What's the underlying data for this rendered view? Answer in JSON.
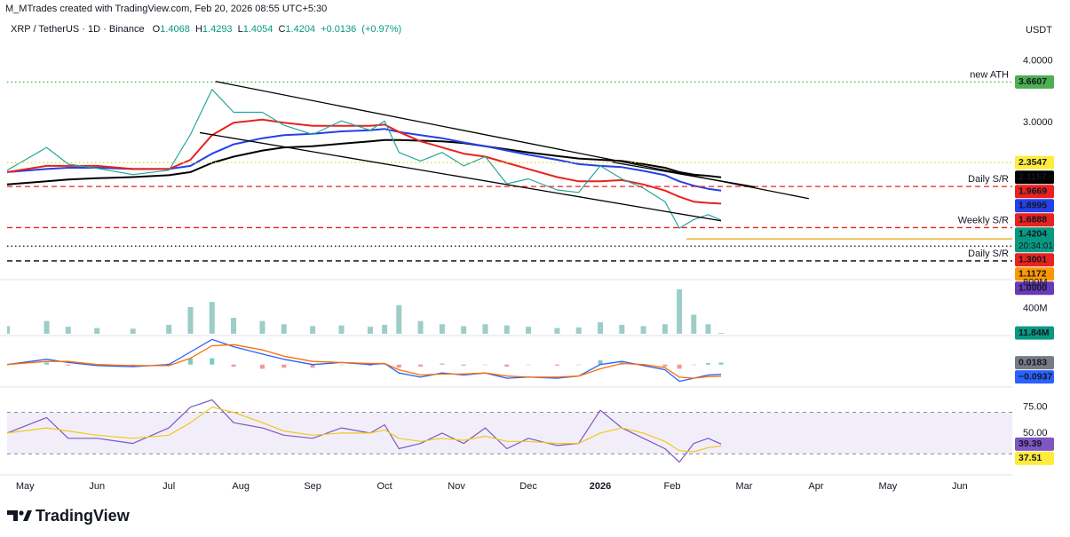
{
  "header": {
    "credit": "M_MTrades created with TradingView.com, Feb 20, 2026 08:55 UTC+5:30",
    "symbol": "XRP / TetherUS · 1D · Binance",
    "ohlc": [
      {
        "key": "O",
        "value": 1.4068
      },
      {
        "key": "H",
        "value": 1.4293
      },
      {
        "key": "L",
        "value": 1.4054
      },
      {
        "key": "C",
        "value": 1.4204
      }
    ],
    "change": "+0.0136",
    "change_pct": "(+0.97%)",
    "currency": "USDT"
  },
  "footer": {
    "brand": "TradingView"
  },
  "chart_data": [
    {
      "type": "line",
      "xlim": [
        -0.25,
        13.73
      ],
      "xticks": [
        {
          "value": 0,
          "label": "May"
        },
        {
          "value": 1,
          "label": "Jun"
        },
        {
          "value": 2,
          "label": "Jul"
        },
        {
          "value": 3,
          "label": "Aug"
        },
        {
          "value": 4,
          "label": "Sep"
        },
        {
          "value": 5,
          "label": "Oct"
        },
        {
          "value": 6,
          "label": "Nov"
        },
        {
          "value": 7,
          "label": "Dec"
        },
        {
          "value": 8,
          "label": "2026"
        },
        {
          "value": 9,
          "label": "Feb"
        },
        {
          "value": 10,
          "label": "Mar"
        },
        {
          "value": 11,
          "label": "Apr"
        },
        {
          "value": 12,
          "label": "May"
        },
        {
          "value": 13,
          "label": "Jun"
        }
      ],
      "ylim": [
        0.5,
        4.3
      ],
      "yticks": [
        {
          "value": 3,
          "label": "3.0000"
        },
        {
          "value": 4,
          "label": "4.0000"
        }
      ],
      "x": [
        -0.25,
        0.3,
        0.6,
        1.0,
        1.5,
        2.0,
        2.3,
        2.6,
        2.9,
        3.3,
        3.6,
        4.0,
        4.4,
        4.8,
        5.0,
        5.2,
        5.5,
        5.8,
        6.1,
        6.4,
        6.7,
        7.0,
        7.4,
        7.7,
        8.0,
        8.3,
        8.6,
        8.9,
        9.1,
        9.3,
        9.5,
        9.68
      ],
      "series": [
        {
          "color": "#000000",
          "width": 2,
          "tag_color": "#000000",
          "values": [
            2.0,
            2.05,
            2.08,
            2.1,
            2.12,
            2.15,
            2.2,
            2.35,
            2.45,
            2.55,
            2.6,
            2.62,
            2.66,
            2.7,
            2.72,
            2.72,
            2.71,
            2.7,
            2.67,
            2.62,
            2.57,
            2.52,
            2.46,
            2.42,
            2.4,
            2.38,
            2.33,
            2.27,
            2.2,
            2.16,
            2.14,
            2.1157
          ]
        },
        {
          "color": "#2440e8",
          "width": 2,
          "tag_color": "#2440e8",
          "values": [
            2.2,
            2.25,
            2.27,
            2.27,
            2.25,
            2.25,
            2.3,
            2.5,
            2.65,
            2.75,
            2.8,
            2.82,
            2.86,
            2.88,
            2.9,
            2.85,
            2.8,
            2.75,
            2.68,
            2.62,
            2.55,
            2.48,
            2.4,
            2.33,
            2.3,
            2.28,
            2.22,
            2.15,
            2.05,
            1.98,
            1.93,
            1.8995
          ]
        },
        {
          "color": "#e8221f",
          "width": 2,
          "tag_color": "#e8221f",
          "values": [
            2.2,
            2.3,
            2.3,
            2.3,
            2.25,
            2.25,
            2.4,
            2.8,
            3.0,
            3.05,
            3.0,
            2.95,
            2.95,
            2.95,
            2.97,
            2.85,
            2.7,
            2.6,
            2.5,
            2.45,
            2.35,
            2.25,
            2.12,
            2.05,
            2.05,
            2.07,
            2.0,
            1.9,
            1.8,
            1.72,
            1.7,
            1.6888
          ]
        },
        {
          "color": "#26a69a",
          "width": 1.2,
          "tag_color": "#089981",
          "countdown": "20:34:01",
          "values": [
            2.23,
            2.6,
            2.33,
            2.26,
            2.16,
            2.23,
            2.81,
            3.54,
            3.17,
            3.17,
            2.96,
            2.81,
            3.03,
            2.88,
            3.03,
            2.52,
            2.38,
            2.52,
            2.3,
            2.45,
            2.01,
            2.09,
            1.91,
            1.87,
            2.3,
            2.09,
            1.94,
            1.72,
            1.29,
            1.43,
            1.51,
            1.4204
          ]
        }
      ],
      "levels": [
        {
          "value": 3.6607,
          "color": "#4caf50",
          "style": "dotted",
          "text": "new ATH",
          "tag_color": "#4caf50"
        },
        {
          "value": 2.3547,
          "color": "#e6d21e",
          "style": "dotted",
          "tag_color": "#ffeb3b",
          "tag_text_color": "#000000"
        },
        {
          "value": 1.9669,
          "color": "#e8221f",
          "style": "dashed",
          "text": "Daily S/R",
          "tag_color": "#e8221f"
        },
        {
          "value": 1.3001,
          "color": "#e8221f",
          "style": "dashed",
          "text": "Weekly S/R",
          "tag_color": "#e8221f"
        },
        {
          "value": 1.1172,
          "color": "#e0a400",
          "style": "solid",
          "x_start": 9.2,
          "tag_color": "#ff9800"
        },
        {
          "value": 1,
          "label": "1.0000",
          "color": "#000000",
          "style": "dotted",
          "tag_color": "#673ab7"
        },
        {
          "value": 0.76,
          "color": "#000000",
          "style": "dashed",
          "text": "Daily S/R"
        }
      ],
      "trendlines": [
        {
          "color": "#000000",
          "x": [
            2.65,
            10.9
          ],
          "y": [
            3.67,
            1.77
          ]
        },
        {
          "color": "#000000",
          "x": [
            2.43,
            9.68
          ],
          "y": [
            2.84,
            1.41
          ]
        },
        {
          "color": "#000000",
          "x": [
            8.17,
            10.15
          ],
          "y": [
            2.36,
            1.96
          ]
        }
      ]
    },
    {
      "type": "bar",
      "color": "#9ccdc6",
      "ylim": [
        0,
        810
      ],
      "yticks": [
        {
          "value": 400,
          "label": "400M"
        },
        {
          "value": 800,
          "label": "800M"
        }
      ],
      "values": [
        120,
        200,
        110,
        90,
        80,
        140,
        420,
        500,
        250,
        200,
        150,
        120,
        130,
        110,
        140,
        450,
        200,
        150,
        120,
        150,
        130,
        110,
        90,
        100,
        180,
        140,
        120,
        150,
        700,
        300,
        150,
        11.84
      ],
      "tag_color": "#089981",
      "tag_label": "11.84M"
    },
    {
      "type": "line",
      "ylim": [
        -0.18,
        0.26
      ],
      "histogram": {
        "color": "#26a69a",
        "negative_color": "#ef5350",
        "tag_color": "#787b86",
        "values": [
          0,
          0.02,
          -0.01,
          -0.01,
          -0.01,
          0.01,
          0.06,
          0.06,
          -0.02,
          -0.04,
          -0.03,
          -0.03,
          0,
          -0.01,
          0,
          -0.03,
          -0.02,
          0.01,
          -0.01,
          0,
          -0.02,
          0,
          -0.01,
          0,
          0.04,
          0.02,
          -0.01,
          -0.02,
          -0.04,
          0,
          0.015,
          0.0183
        ]
      },
      "series": [
        {
          "color": "#2962ff",
          "width": 1.3,
          "tag_color": "#2962ff",
          "tag_label": "−0.0937",
          "values": [
            0.0,
            0.05,
            0.02,
            -0.01,
            -0.02,
            0.0,
            0.12,
            0.24,
            0.17,
            0.1,
            0.05,
            0.0,
            0.02,
            0.0,
            0.01,
            -0.08,
            -0.12,
            -0.08,
            -0.1,
            -0.08,
            -0.13,
            -0.12,
            -0.13,
            -0.11,
            0.0,
            0.03,
            -0.01,
            -0.05,
            -0.16,
            -0.13,
            -0.1,
            -0.0937
          ]
        },
        {
          "color": "#ff6d00",
          "width": 1.3,
          "values": [
            0.0,
            0.03,
            0.03,
            0.0,
            -0.01,
            -0.01,
            0.06,
            0.18,
            0.19,
            0.14,
            0.08,
            0.03,
            0.02,
            0.01,
            0.01,
            -0.05,
            -0.1,
            -0.09,
            -0.09,
            -0.08,
            -0.11,
            -0.12,
            -0.12,
            -0.11,
            -0.04,
            0.01,
            0.0,
            -0.03,
            -0.12,
            -0.13,
            -0.115,
            -0.112
          ]
        }
      ]
    },
    {
      "type": "line",
      "ylim": [
        14,
        91
      ],
      "yticks": [
        {
          "value": 50,
          "label": "50.00"
        },
        {
          "value": 75,
          "label": "75.00"
        }
      ],
      "bands": [
        30,
        70
      ],
      "band_color": "#7e57c2",
      "series": [
        {
          "color": "#7e57c2",
          "width": 1.2,
          "tag_color": "#7e57c2",
          "values": [
            50,
            65,
            45,
            45,
            40,
            55,
            75,
            82,
            60,
            55,
            48,
            45,
            55,
            50,
            58,
            35,
            40,
            50,
            40,
            55,
            35,
            45,
            38,
            40,
            72,
            55,
            45,
            35,
            22,
            40,
            45,
            39.39
          ]
        },
        {
          "color": "#f2c81a",
          "width": 1.2,
          "tag_color": "#ffeb3b",
          "tag_text_color": "#000000",
          "values": [
            50,
            55,
            52,
            48,
            45,
            48,
            60,
            75,
            70,
            60,
            52,
            48,
            50,
            50,
            53,
            45,
            42,
            45,
            43,
            47,
            42,
            42,
            40,
            40,
            50,
            55,
            50,
            42,
            33,
            32,
            36,
            37.51
          ]
        }
      ]
    }
  ]
}
